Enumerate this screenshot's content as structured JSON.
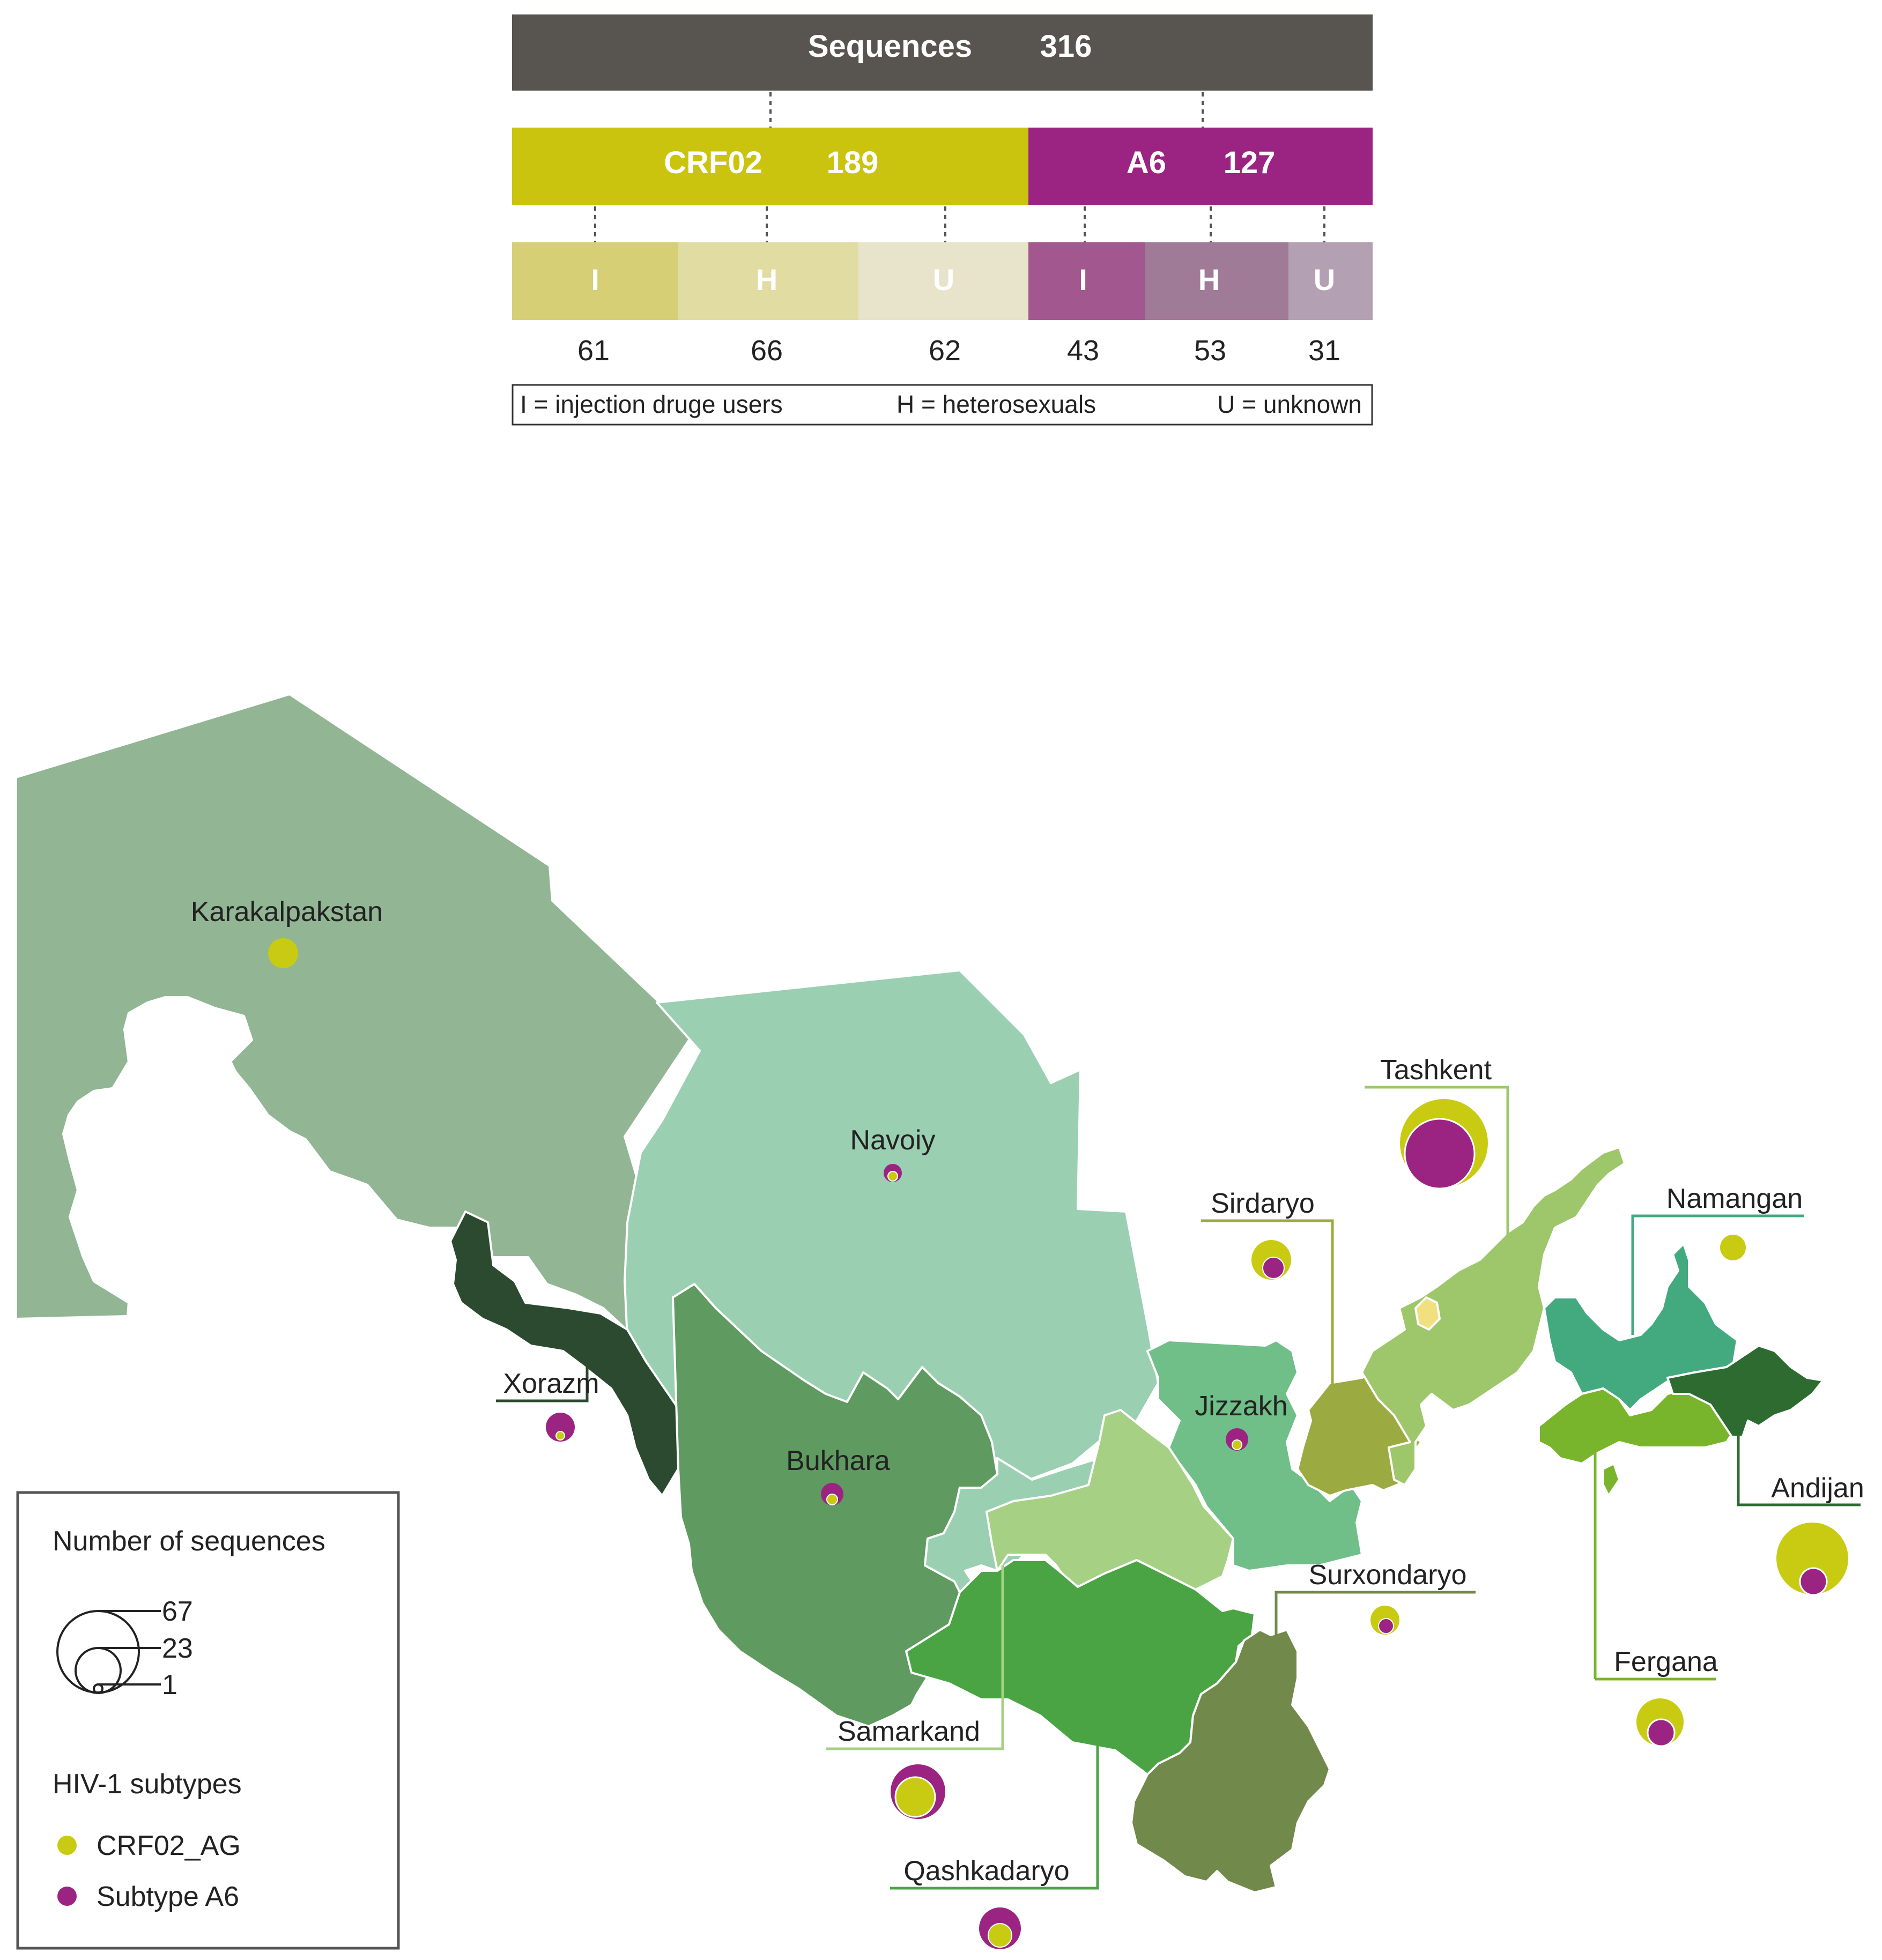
{
  "tree": {
    "root": {
      "label": "Sequences",
      "count": "316",
      "color": "#58544f"
    },
    "subtypes": [
      {
        "id": "crf02",
        "label": "CRF02",
        "count": "189",
        "color": "#cbc40e"
      },
      {
        "id": "a6",
        "label": "A6",
        "count": "127",
        "color": "#9b2482"
      }
    ],
    "groups": [
      {
        "label": "I",
        "count": "61",
        "color": "#d6cf76"
      },
      {
        "label": "H",
        "count": "66",
        "color": "#e0dca2"
      },
      {
        "label": "U",
        "count": "62",
        "color": "#e7e4cb"
      },
      {
        "label": "I",
        "count": "43",
        "color": "#a2578f"
      },
      {
        "label": "H",
        "count": "53",
        "color": "#a07b97"
      },
      {
        "label": "U",
        "count": "31",
        "color": "#b4a0b3"
      }
    ],
    "key": {
      "injection": "I = injection druge users",
      "hetero": "H = heterosexuals",
      "unknown": "U = unknown"
    }
  },
  "regions": [
    {
      "name": "Karakalpakstan",
      "color": "#92b594"
    },
    {
      "name": "Navoiy",
      "color": "#9bcfb2"
    },
    {
      "name": "Xorazm",
      "color": "#2c4a30"
    },
    {
      "name": "Bukhara",
      "color": "#5f9a60"
    },
    {
      "name": "Samarkand",
      "color": "#a6d083"
    },
    {
      "name": "Qashkadaryo",
      "color": "#4ba444"
    },
    {
      "name": "Surxondaryo",
      "color": "#71894a"
    },
    {
      "name": "Jizzakh",
      "color": "#70be88"
    },
    {
      "name": "Sirdaryo",
      "color": "#9cab41"
    },
    {
      "name": "Tashkent",
      "color": "#9dc76a"
    },
    {
      "name": "Namangan",
      "color": "#43aa80"
    },
    {
      "name": "Fergana",
      "color": "#79b42d"
    },
    {
      "name": "Andijan",
      "color": "#2e6b31"
    }
  ],
  "colors": {
    "crf02": "#c9cb12",
    "a6": "#9b2482"
  },
  "legend": {
    "size_title": "Number of sequences",
    "size_values": [
      "67",
      "23",
      "1"
    ],
    "subtype_title": "HIV-1 subtypes",
    "subtypes": [
      {
        "label": "CRF02_AG",
        "color": "#c9cb12"
      },
      {
        "label": "Subtype A6",
        "color": "#9b2482"
      }
    ]
  }
}
